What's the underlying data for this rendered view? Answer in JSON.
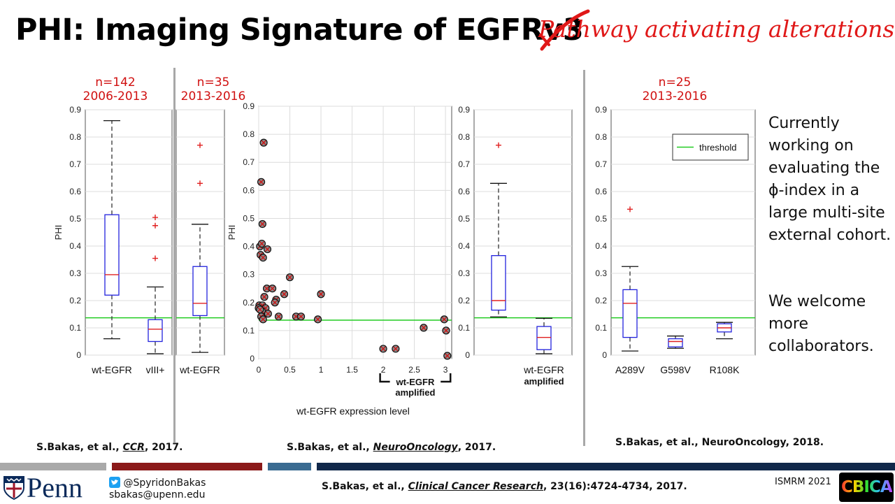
{
  "slide": {
    "title_main": "PHI: Imaging Signature of EGFR",
    "title_struck": "v3",
    "title_replacement": "Pathway activating alterations",
    "panel1": {
      "n_label": "n=142",
      "years": "2006-2013"
    },
    "panel2": {
      "n_label": "n=35",
      "years": "2013-2016"
    },
    "panel3": {
      "n_label": "n=25",
      "years": "2013-2016"
    },
    "side_text_1": [
      "Currently",
      "working on",
      "evaluating the",
      "ϕ-index in a",
      "large multi-site",
      "external cohort."
    ],
    "side_text_2": [
      "We welcome",
      "more",
      "collaborators."
    ],
    "citation_1": {
      "prefix": "S.Bakas, et al., ",
      "journal": "CCR",
      "suffix": ", 2017."
    },
    "citation_2": {
      "prefix": "S.Bakas, et al., ",
      "journal": "NeuroOncology",
      "suffix": ", 2017."
    },
    "citation_3": "S.Bakas, et al., NeuroOncology, 2018.",
    "footer": {
      "logo_text": "Penn",
      "twitter": "@SpyridonBakas",
      "email": "sbakas@upenn.edu",
      "reference_prefix": "S.Bakas, et al., ",
      "reference_journal": "Clinical Cancer Research",
      "reference_suffix": ", 23(16):4724-4734, 2017.",
      "conference": "ISMRM 2021",
      "lab_logo": "CBICA"
    },
    "colors": {
      "title_red": "#e01818",
      "threshold": "#22cc22",
      "box": "#2222dd",
      "median": "#e02020",
      "outlier": "#e02020"
    }
  },
  "chart_data": [
    {
      "type": "box",
      "ylabel": "PHI",
      "ylim": [
        0,
        0.9
      ],
      "yticks": [
        "0",
        "0.1",
        "0.2",
        "0.3",
        "0.4",
        "0.5",
        "0.6",
        "0.7",
        "0.8",
        "0.9"
      ],
      "threshold": 0.137,
      "series": [
        {
          "name": "wt-EGFR",
          "whisker_low": 0.06,
          "q1": 0.22,
          "median": 0.295,
          "q3": 0.515,
          "whisker_high": 0.86,
          "outliers": []
        },
        {
          "name": "vIII+",
          "whisker_low": 0.005,
          "q1": 0.05,
          "median": 0.095,
          "q3": 0.13,
          "whisker_high": 0.25,
          "outliers": [
            0.355,
            0.475,
            0.505
          ]
        }
      ]
    },
    {
      "type": "box",
      "ylim": [
        0,
        0.9
      ],
      "threshold": 0.137,
      "series": [
        {
          "name": "wt-EGFR",
          "whisker_low": 0.01,
          "q1": 0.145,
          "median": 0.19,
          "q3": 0.325,
          "whisker_high": 0.48,
          "outliers": [
            0.63,
            0.77
          ]
        }
      ]
    },
    {
      "type": "scatter",
      "xlabel": "wt-EGFR expression level",
      "ylabel": "PHI",
      "xlim": [
        0,
        3.1
      ],
      "ylim": [
        0,
        0.9
      ],
      "xticks": [
        "0",
        "0.5",
        "1",
        "1.5",
        "2",
        "2.5",
        "3"
      ],
      "yticks": [
        "0",
        "0.1",
        "0.2",
        "0.3",
        "0.4",
        "0.5",
        "0.6",
        "0.7",
        "0.8",
        "0.9"
      ],
      "threshold": 0.137,
      "bracket_label": "wt-EGFR",
      "bracket_label_2": "amplified",
      "points": [
        [
          0.08,
          0.77
        ],
        [
          0.04,
          0.63
        ],
        [
          0.06,
          0.48
        ],
        [
          0.02,
          0.4
        ],
        [
          0.05,
          0.41
        ],
        [
          0.14,
          0.39
        ],
        [
          0.03,
          0.37
        ],
        [
          0.07,
          0.36
        ],
        [
          0.5,
          0.29
        ],
        [
          0.41,
          0.23
        ],
        [
          0.13,
          0.25
        ],
        [
          0.22,
          0.25
        ],
        [
          0.09,
          0.22
        ],
        [
          0.28,
          0.21
        ],
        [
          0.26,
          0.2
        ],
        [
          0.01,
          0.19
        ],
        [
          0.03,
          0.18
        ],
        [
          0.06,
          0.19
        ],
        [
          0.0,
          0.18
        ],
        [
          0.11,
          0.18
        ],
        [
          0.05,
          0.17
        ],
        [
          0.02,
          0.175
        ],
        [
          0.15,
          0.16
        ],
        [
          0.04,
          0.15
        ],
        [
          0.32,
          0.15
        ],
        [
          0.6,
          0.15
        ],
        [
          0.68,
          0.15
        ],
        [
          0.07,
          0.14
        ],
        [
          0.95,
          0.14
        ],
        [
          1.0,
          0.23
        ],
        [
          2.0,
          0.035
        ],
        [
          2.2,
          0.035
        ],
        [
          2.65,
          0.11
        ],
        [
          2.98,
          0.14
        ],
        [
          3.01,
          0.1
        ],
        [
          3.03,
          0.01
        ]
      ]
    },
    {
      "type": "box",
      "ylim": [
        0,
        0.9
      ],
      "yticks": [
        "0",
        "0.1",
        "0.2",
        "0.3",
        "0.4",
        "0.5",
        "0.6",
        "0.7",
        "0.8",
        "0.9"
      ],
      "threshold": 0.137,
      "series": [
        {
          "name": "",
          "whisker_low": 0.14,
          "q1": 0.165,
          "median": 0.2,
          "q3": 0.365,
          "whisker_high": 0.63,
          "outliers": [
            0.77
          ]
        },
        {
          "name": "wt-EGFR",
          "name_2": "amplified",
          "whisker_low": 0.005,
          "q1": 0.02,
          "median": 0.065,
          "q3": 0.105,
          "whisker_high": 0.135,
          "outliers": []
        }
      ]
    },
    {
      "type": "box",
      "ylim": [
        0,
        0.9
      ],
      "yticks": [
        "0",
        "0.1",
        "0.2",
        "0.3",
        "0.4",
        "0.5",
        "0.6",
        "0.7",
        "0.8",
        "0.9"
      ],
      "threshold": 0.137,
      "legend": {
        "label": "threshold",
        "position": "top-right"
      },
      "series": [
        {
          "name": "A289V",
          "whisker_low": 0.015,
          "q1": 0.065,
          "median": 0.19,
          "q3": 0.24,
          "whisker_high": 0.325,
          "outliers": [
            0.535
          ]
        },
        {
          "name": "G598V",
          "whisker_low": 0.025,
          "q1": 0.03,
          "median": 0.05,
          "q3": 0.06,
          "whisker_high": 0.07,
          "outliers": []
        },
        {
          "name": "R108K",
          "whisker_low": 0.06,
          "q1": 0.085,
          "median": 0.1,
          "q3": 0.115,
          "whisker_high": 0.12,
          "outliers": []
        }
      ]
    }
  ]
}
